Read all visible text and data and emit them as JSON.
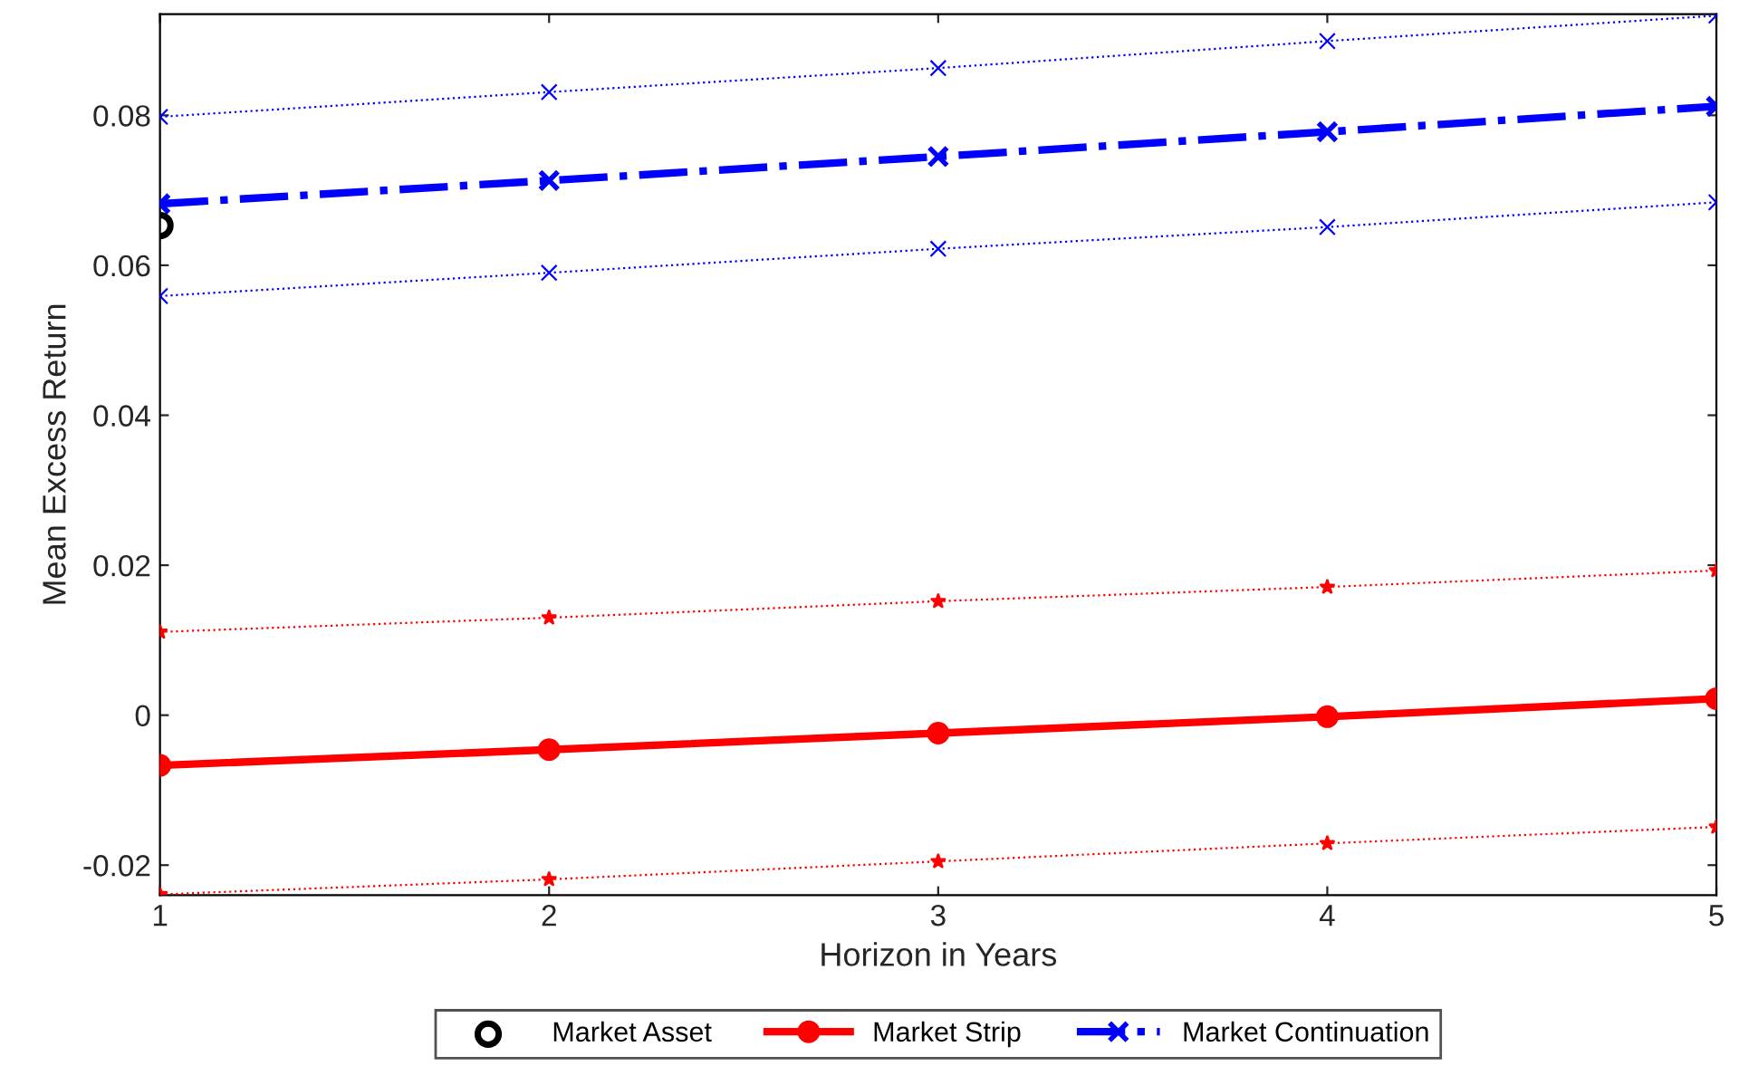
{
  "chart_data": {
    "type": "line",
    "xlabel": "Horizon in Years",
    "ylabel": "Mean Excess Return",
    "x": [
      1,
      2,
      3,
      4,
      5
    ],
    "xlim": [
      1,
      5
    ],
    "xticks": [
      1,
      2,
      3,
      4,
      5
    ],
    "ylim": [
      -0.024,
      0.0935
    ],
    "yticks": [
      -0.02,
      0,
      0.02,
      0.04,
      0.06,
      0.08
    ],
    "grid": false,
    "legend": "bottom",
    "series": [
      {
        "name": "Market Asset",
        "type": "scatter",
        "x": [
          1
        ],
        "color": "#000000",
        "marker": "circle",
        "values": [
          0.0653
        ]
      },
      {
        "name": "Market Strip",
        "color": "#ff0000",
        "marker": "circle",
        "line_style": "solid",
        "values": [
          -0.0067,
          -0.0046,
          -0.0024,
          -0.0002,
          0.0022
        ]
      },
      {
        "name": "Market Continuation",
        "color": "#0000ff",
        "marker": "cross",
        "line_style": "dashdot",
        "values": [
          0.0682,
          0.0713,
          0.0745,
          0.0778,
          0.0812
        ]
      },
      {
        "color": "#ff0000",
        "marker": "star",
        "line_style": "dotted",
        "values": [
          0.0111,
          0.013,
          0.0152,
          0.0171,
          0.0193
        ]
      },
      {
        "color": "#ff0000",
        "marker": "star",
        "line_style": "dotted",
        "values": [
          -0.0239,
          -0.0219,
          -0.0195,
          -0.0171,
          -0.0149
        ]
      },
      {
        "color": "#0000ff",
        "marker": "cross",
        "line_style": "dotted",
        "values": [
          0.0798,
          0.0831,
          0.0863,
          0.0899,
          0.0933
        ]
      },
      {
        "color": "#0000ff",
        "marker": "cross",
        "line_style": "dotted",
        "values": [
          0.0559,
          0.059,
          0.0622,
          0.0651,
          0.0684
        ]
      }
    ]
  }
}
